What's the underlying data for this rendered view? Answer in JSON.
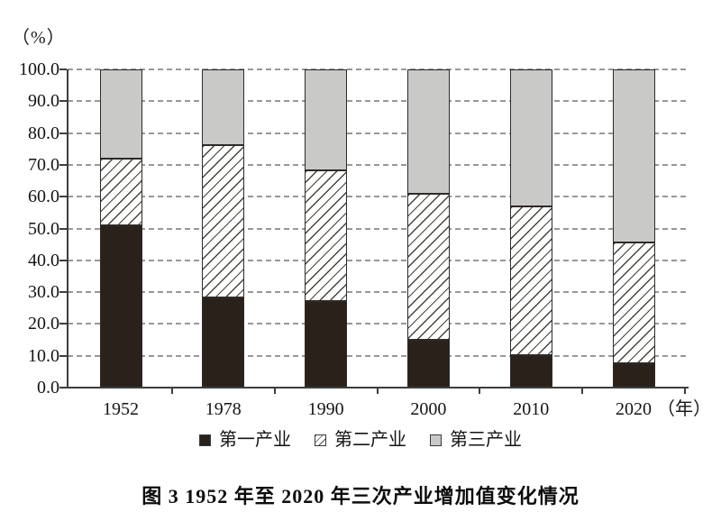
{
  "chart_data": {
    "type": "bar",
    "stacked": true,
    "title": "图 3  1952 年至 2020 年三次产业增加值变化情况",
    "unit_y": "（%）",
    "unit_x": "（年）",
    "categories": [
      "1952",
      "1978",
      "1990",
      "2000",
      "2010",
      "2020"
    ],
    "series": [
      {
        "name": "第一产业",
        "pattern": "primary",
        "color": "#2b211b",
        "values": [
          51.0,
          28.2,
          27.1,
          15.1,
          10.1,
          7.7
        ]
      },
      {
        "name": "第二产业",
        "pattern": "hatch",
        "color": "#ffffff",
        "values": [
          20.9,
          47.9,
          41.3,
          45.9,
          46.8,
          37.8
        ]
      },
      {
        "name": "第三产业",
        "pattern": "tertiary",
        "color": "#c9c9c8",
        "values": [
          28.1,
          23.9,
          31.6,
          39.0,
          43.1,
          54.5
        ]
      }
    ],
    "ylim": [
      0,
      100
    ],
    "y_tick_step": 10,
    "y_ticks": [
      "0.0",
      "10.0",
      "20.0",
      "30.0",
      "40.0",
      "50.0",
      "60.0",
      "70.0",
      "80.0",
      "90.0",
      "100.0"
    ],
    "grid": "horizontal-dashed",
    "legend_position": "bottom"
  }
}
